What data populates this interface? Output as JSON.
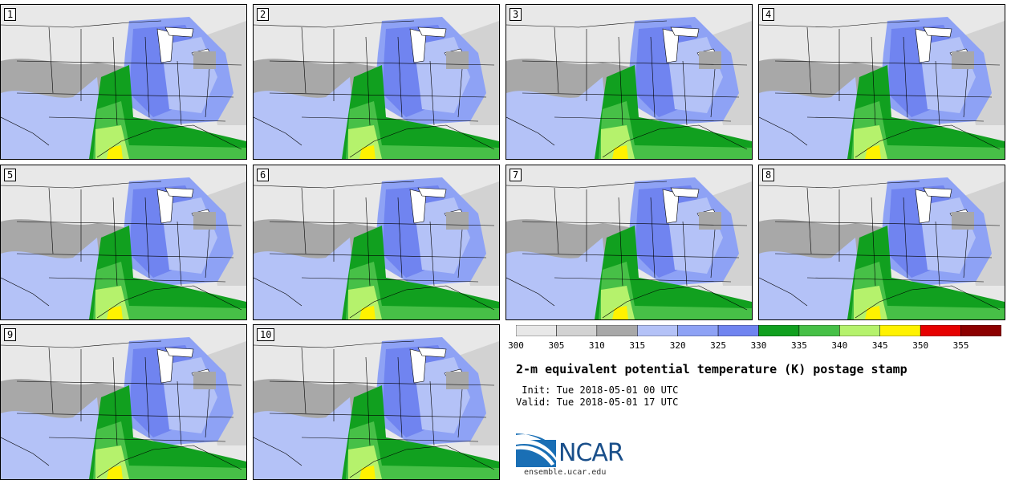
{
  "panels": [
    {
      "label": "1"
    },
    {
      "label": "2"
    },
    {
      "label": "3"
    },
    {
      "label": "4"
    },
    {
      "label": "5"
    },
    {
      "label": "6"
    },
    {
      "label": "7"
    },
    {
      "label": "8"
    },
    {
      "label": "9"
    },
    {
      "label": "10"
    }
  ],
  "colorbar": {
    "colors": [
      "#e8e8e8",
      "#d2d2d2",
      "#a8a8a8",
      "#b4c2f7",
      "#8ea2f5",
      "#7084f0",
      "#11a01f",
      "#47c047",
      "#b5f26c",
      "#fff200",
      "#e60000",
      "#8c0000"
    ],
    "labels": [
      "300",
      "305",
      "310",
      "315",
      "320",
      "325",
      "330",
      "335",
      "340",
      "345",
      "350",
      "355"
    ]
  },
  "title": "2-m equivalent potential temperature (K) postage stamp",
  "init": " Init: Tue 2018-05-01 00 UTC",
  "valid": "Valid: Tue 2018-05-01 17 UTC",
  "logo": {
    "name": "NCAR",
    "url": "ensemble.ucar.edu"
  }
}
